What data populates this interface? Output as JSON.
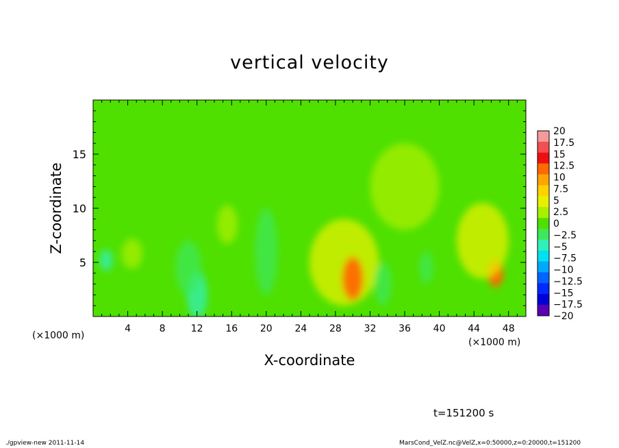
{
  "chart_data": {
    "type": "heatmap",
    "title": "vertical velocity",
    "xlabel": "X-coordinate",
    "ylabel": "Z-coordinate",
    "x_unit_left": "(×1000 m)",
    "x_unit_right": "(×1000 m)",
    "xlim": [
      0,
      50
    ],
    "ylim": [
      0,
      20
    ],
    "x_ticks": [
      4,
      8,
      12,
      16,
      20,
      24,
      28,
      32,
      36,
      40,
      44,
      48
    ],
    "x_tick_labels": [
      "4",
      "8",
      "12",
      "16",
      "20",
      "24",
      "28",
      "32",
      "36",
      "40",
      "44",
      "48"
    ],
    "y_ticks": [
      5,
      10,
      15
    ],
    "y_tick_labels": [
      "5",
      "10",
      "15"
    ],
    "colorbar": {
      "levels": [
        20,
        17.5,
        15,
        12.5,
        10,
        7.5,
        5,
        2.5,
        0,
        -2.5,
        -5,
        -7.5,
        -10,
        -12.5,
        -15,
        -17.5,
        -20
      ],
      "labels": [
        "20",
        "17.5",
        "15",
        "12.5",
        "10",
        "7.5",
        "5",
        "2.5",
        "0",
        "−2.5",
        "−5",
        "−7.5",
        "−10",
        "−12.5",
        "−15",
        "−17.5",
        "−20"
      ],
      "colors": [
        "#f39a9a",
        "#f25050",
        "#ee1010",
        "#ff6a00",
        "#ffa400",
        "#ffd200",
        "#e6f000",
        "#a9ef00",
        "#50e000",
        "#3ee85a",
        "#30f0b8",
        "#00e0f0",
        "#00a8ff",
        "#0064ff",
        "#0028ff",
        "#0000d4",
        "#5a00b4"
      ]
    },
    "features": [
      {
        "x": 4.5,
        "z": 5.8,
        "w": 2,
        "rx": 1.2,
        "rz": 1.4
      },
      {
        "x": 1.5,
        "z": 5.2,
        "w": -7,
        "rx": 0.8,
        "rz": 1.0
      },
      {
        "x": 12,
        "z": 2.0,
        "w": -6,
        "rx": 1.2,
        "rz": 2.2
      },
      {
        "x": 11,
        "z": 4.5,
        "w": -4,
        "rx": 1.5,
        "rz": 2.5
      },
      {
        "x": 15.5,
        "z": 8.5,
        "w": 2,
        "rx": 1.2,
        "rz": 1.8
      },
      {
        "x": 20,
        "z": 6.0,
        "w": -3,
        "rx": 1.3,
        "rz": 4.0
      },
      {
        "x": 29,
        "z": 5.0,
        "w": 5,
        "rx": 4.0,
        "rz": 4.0
      },
      {
        "x": 30,
        "z": 3.5,
        "w": 12,
        "rx": 1.2,
        "rz": 2.0
      },
      {
        "x": 33.5,
        "z": 3.0,
        "w": -4,
        "rx": 1.0,
        "rz": 2.0
      },
      {
        "x": 38.5,
        "z": 4.5,
        "w": -3,
        "rx": 0.8,
        "rz": 1.5
      },
      {
        "x": 46.5,
        "z": 4.0,
        "w": 12,
        "rx": 0.9,
        "rz": 1.3
      },
      {
        "x": 45,
        "z": 7.0,
        "w": 3,
        "rx": 3.0,
        "rz": 3.5
      },
      {
        "x": 36,
        "z": 12.0,
        "w": 2,
        "rx": 4.0,
        "rz": 4.0
      }
    ]
  },
  "labels": {
    "time": "t=151200 s",
    "footer_left": "./gpview-new   2011-11-14",
    "footer_right": "MarsCond_VelZ.nc@VelZ,x=0:50000,z=0:20000,t=151200"
  },
  "colors": {
    "background_field": "#4fe000",
    "frame": "#000000"
  }
}
